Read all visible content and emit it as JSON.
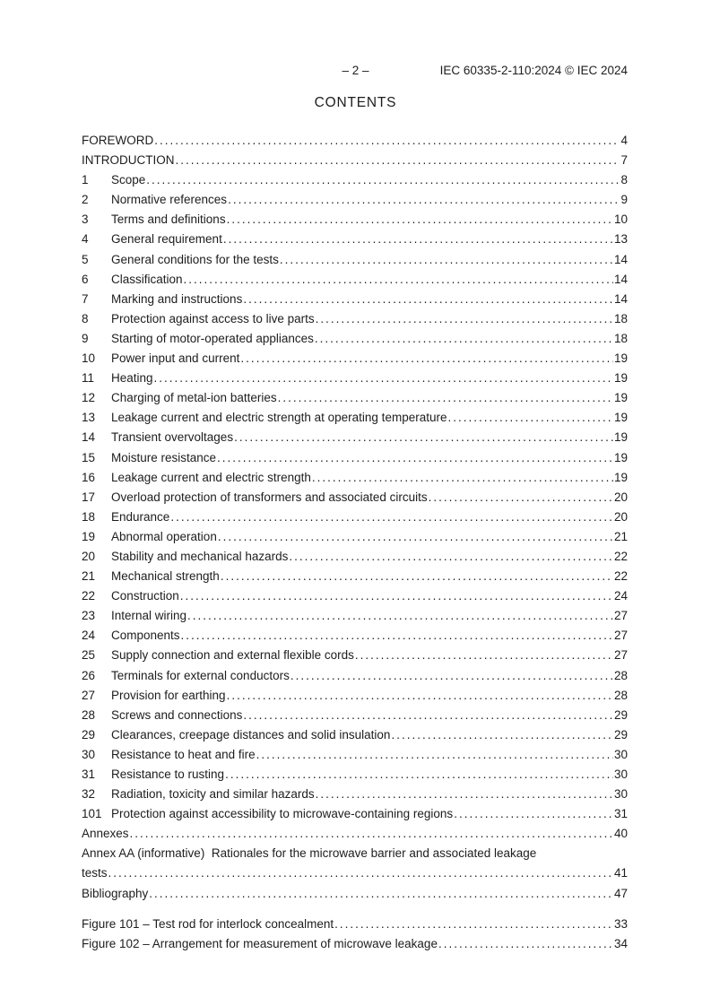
{
  "header": {
    "page_number": "– 2 –",
    "doc_ref": "IEC 60335-2-110:2024 © IEC 2024"
  },
  "title": "CONTENTS",
  "colors": {
    "text": "#1d1d1d",
    "background": "#ffffff"
  },
  "toc": {
    "entries": [
      {
        "num": "",
        "label": "FOREWORD",
        "page": "4"
      },
      {
        "num": "",
        "label": "INTRODUCTION",
        "page": "7"
      },
      {
        "num": "1",
        "label": "Scope",
        "page": "8"
      },
      {
        "num": "2",
        "label": "Normative references",
        "page": "9"
      },
      {
        "num": "3",
        "label": "Terms and definitions",
        "page": "10"
      },
      {
        "num": "4",
        "label": "General requirement",
        "page": "13"
      },
      {
        "num": "5",
        "label": "General conditions for the tests",
        "page": "14"
      },
      {
        "num": "6",
        "label": "Classification",
        "page": "14"
      },
      {
        "num": "7",
        "label": "Marking and instructions",
        "page": "14"
      },
      {
        "num": "8",
        "label": "Protection against access to live parts",
        "page": "18"
      },
      {
        "num": "9",
        "label": "Starting of motor-operated appliances",
        "page": "18"
      },
      {
        "num": "10",
        "label": "Power input and current",
        "page": "19"
      },
      {
        "num": "11",
        "label": "Heating",
        "page": "19"
      },
      {
        "num": "12",
        "label": "Charging of metal-ion batteries",
        "page": "19"
      },
      {
        "num": "13",
        "label": "Leakage current and electric strength at operating temperature",
        "page": "19"
      },
      {
        "num": "14",
        "label": "Transient overvoltages",
        "page": "19"
      },
      {
        "num": "15",
        "label": "Moisture resistance",
        "page": "19"
      },
      {
        "num": "16",
        "label": "Leakage current and electric strength",
        "page": "19"
      },
      {
        "num": "17",
        "label": "Overload protection of transformers and associated circuits",
        "page": "20"
      },
      {
        "num": "18",
        "label": "Endurance",
        "page": "20"
      },
      {
        "num": "19",
        "label": "Abnormal operation",
        "page": "21"
      },
      {
        "num": "20",
        "label": "Stability and mechanical hazards",
        "page": "22"
      },
      {
        "num": "21",
        "label": "Mechanical strength",
        "page": "22"
      },
      {
        "num": "22",
        "label": "Construction",
        "page": "24"
      },
      {
        "num": "23",
        "label": "Internal wiring",
        "page": "27"
      },
      {
        "num": "24",
        "label": "Components",
        "page": "27"
      },
      {
        "num": "25",
        "label": "Supply connection and external flexible cords",
        "page": "27"
      },
      {
        "num": "26",
        "label": "Terminals for external conductors",
        "page": "28"
      },
      {
        "num": "27",
        "label": "Provision for earthing",
        "page": "28"
      },
      {
        "num": "28",
        "label": "Screws and connections",
        "page": "29"
      },
      {
        "num": "29",
        "label": "Clearances, creepage distances and solid insulation",
        "page": "29"
      },
      {
        "num": "30",
        "label": "Resistance to heat and fire",
        "page": "30"
      },
      {
        "num": "31",
        "label": "Resistance to rusting",
        "page": "30"
      },
      {
        "num": "32",
        "label": "Radiation, toxicity and similar hazards",
        "page": "30"
      },
      {
        "num": "101",
        "label": "Protection against accessibility to microwave-containing regions",
        "page": "31"
      },
      {
        "num": "",
        "label": "Annexes",
        "page": "40"
      },
      {
        "num": "",
        "label": "Annex AA (informative)  Rationales for the microwave barrier and associated leakage",
        "page": ""
      },
      {
        "num": "",
        "label": "tests",
        "page": "41"
      },
      {
        "num": "",
        "label": "Bibliography",
        "page": "47"
      }
    ],
    "figures": [
      {
        "num": "",
        "label": "Figure 101 – Test rod for interlock concealment",
        "page": "33"
      },
      {
        "num": "",
        "label": "Figure 102 – Arrangement for measurement of microwave leakage",
        "page": "34"
      }
    ]
  }
}
